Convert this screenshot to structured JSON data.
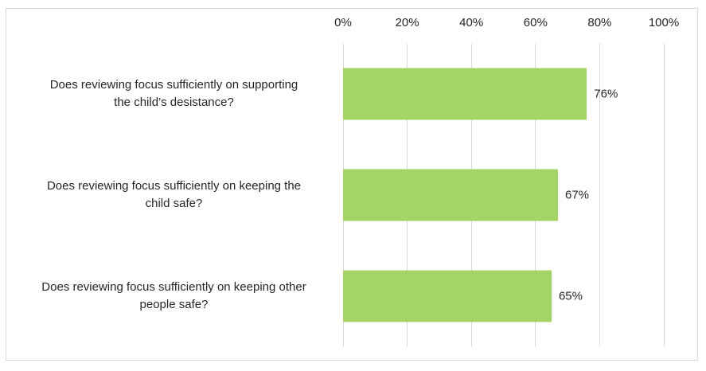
{
  "chart_data": {
    "type": "bar",
    "orientation": "horizontal",
    "title": "",
    "xlabel": "",
    "ylabel": "",
    "categories": [
      [
        "Does reviewing focus sufficiently on supporting",
        "the child’s desistance?"
      ],
      [
        "Does reviewing focus sufficiently on keeping the",
        "child safe?"
      ],
      [
        "Does reviewing focus sufficiently on keeping other",
        "people safe?"
      ]
    ],
    "values": [
      76,
      67,
      65
    ],
    "value_labels": [
      "76%",
      "67%",
      "65%"
    ],
    "x_ticks": [
      "0%",
      "20%",
      "40%",
      "60%",
      "80%",
      "100%"
    ],
    "xlim": [
      0,
      100
    ],
    "axis_position": "top",
    "grid": true,
    "legend_position": "none",
    "bar_color": "#a3d465",
    "gridline_color": "#d9d9d9",
    "border_color": "#d9d9d9",
    "text_color": "#262626"
  }
}
